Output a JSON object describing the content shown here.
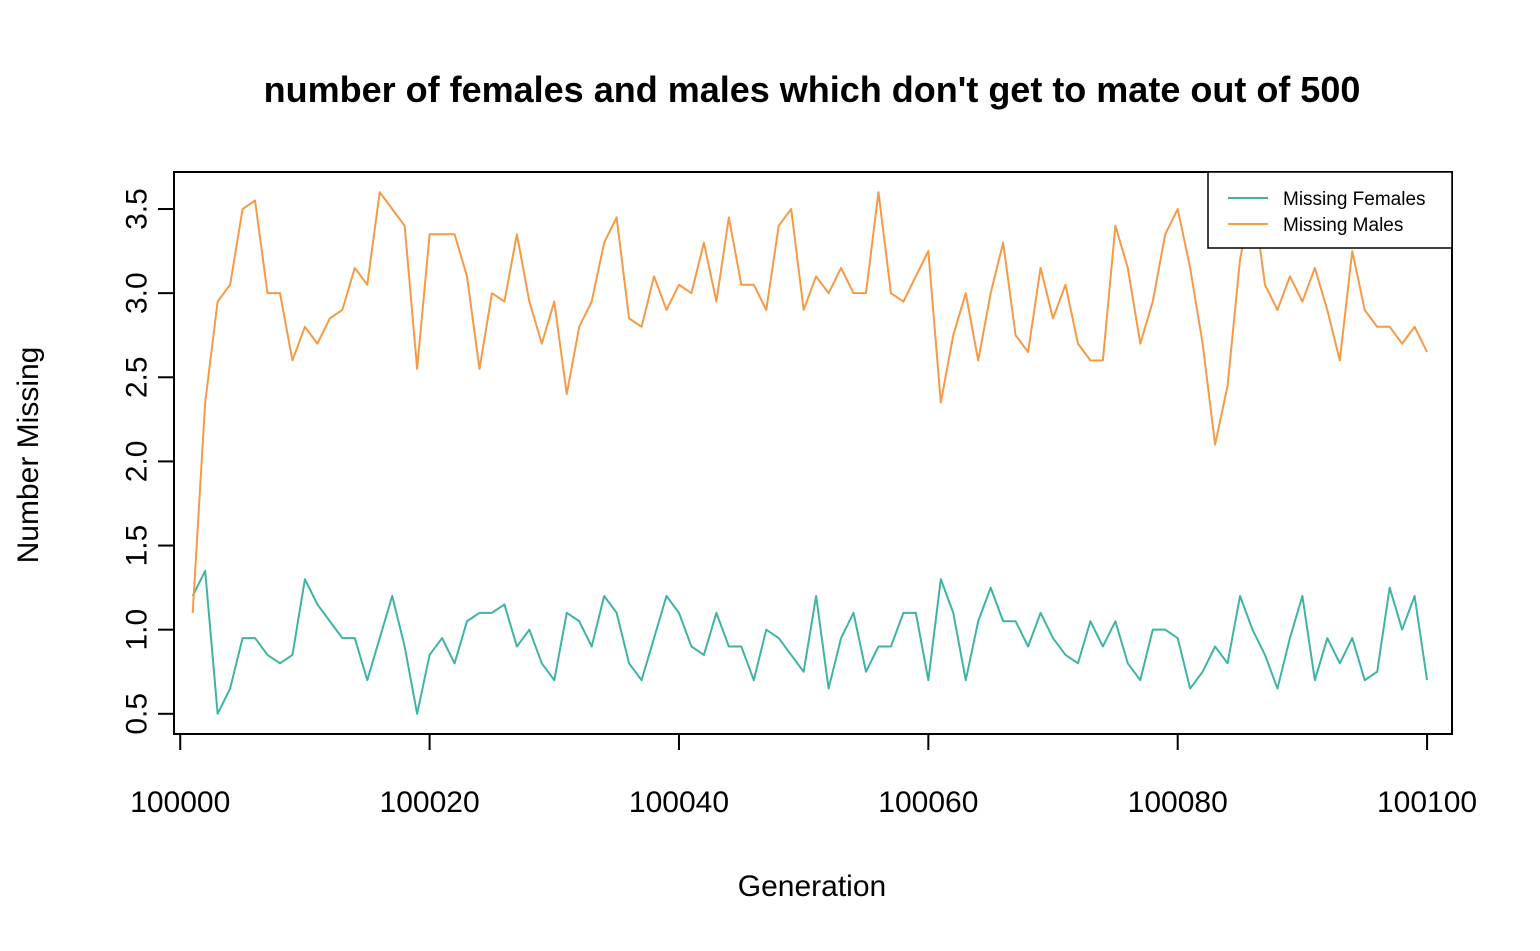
{
  "chart_data": {
    "type": "line",
    "title": "number of females and males which don't get to mate out of 500",
    "xlabel": "Generation",
    "ylabel": "Number Missing",
    "xlim": [
      99999.5,
      100102
    ],
    "ylim": [
      0.38,
      3.72
    ],
    "x_ticks": [
      "100000",
      "100020",
      "100040",
      "100060",
      "100080",
      "100100"
    ],
    "y_ticks": [
      "0.5",
      "1.0",
      "1.5",
      "2.0",
      "2.5",
      "3.0",
      "3.5"
    ],
    "grid": false,
    "legend_position": "top-right",
    "x_start": 100001,
    "x_end": 100100,
    "series": [
      {
        "name": "Missing Females",
        "color": "#3fb4a5",
        "values": [
          1.2,
          1.35,
          0.5,
          0.65,
          0.95,
          0.95,
          0.85,
          0.8,
          0.85,
          1.3,
          1.15,
          1.05,
          0.95,
          0.95,
          0.7,
          0.95,
          1.2,
          0.9,
          0.5,
          0.85,
          0.95,
          0.8,
          1.05,
          1.1,
          1.1,
          1.15,
          0.9,
          1.0,
          0.8,
          0.7,
          1.1,
          1.05,
          0.9,
          1.2,
          1.1,
          0.8,
          0.7,
          0.95,
          1.2,
          1.1,
          0.9,
          0.85,
          1.1,
          0.9,
          0.9,
          0.7,
          1.0,
          0.95,
          0.85,
          0.75,
          1.2,
          0.65,
          0.95,
          1.1,
          0.75,
          0.9,
          0.9,
          1.1,
          1.1,
          0.7,
          1.3,
          1.1,
          0.7,
          1.05,
          1.25,
          1.05,
          1.05,
          0.9,
          1.1,
          0.95,
          0.85,
          0.8,
          1.05,
          0.9,
          1.05,
          0.8,
          0.7,
          1.0,
          1.0,
          0.95,
          0.65,
          0.75,
          0.9,
          0.8,
          1.2,
          1.0,
          0.85,
          0.65,
          0.95,
          1.2,
          0.7,
          0.95,
          0.8,
          0.95,
          0.7,
          0.75,
          1.25,
          1.0,
          1.2,
          0.7
        ]
      },
      {
        "name": "Missing Males",
        "color": "#f59a46",
        "values": [
          1.1,
          2.35,
          2.95,
          3.05,
          3.5,
          3.55,
          3.0,
          3.0,
          2.6,
          2.8,
          2.7,
          2.85,
          2.9,
          3.15,
          3.05,
          3.6,
          3.5,
          3.4,
          2.55,
          3.35,
          3.35,
          3.35,
          3.1,
          2.55,
          3.0,
          2.95,
          3.35,
          2.95,
          2.7,
          2.95,
          2.4,
          2.8,
          2.95,
          3.3,
          3.45,
          2.85,
          2.8,
          3.1,
          2.9,
          3.05,
          3.0,
          3.3,
          2.95,
          3.45,
          3.05,
          3.05,
          2.9,
          3.4,
          3.5,
          2.9,
          3.1,
          3.0,
          3.15,
          3.0,
          3.0,
          3.6,
          3.0,
          2.95,
          3.1,
          3.25,
          2.35,
          2.75,
          3.0,
          2.6,
          3.0,
          3.3,
          2.75,
          2.65,
          3.15,
          2.85,
          3.05,
          2.7,
          2.6,
          2.6,
          3.4,
          3.15,
          2.7,
          2.95,
          3.35,
          3.5,
          3.15,
          2.7,
          2.1,
          2.45,
          3.2,
          3.6,
          3.05,
          2.9,
          3.1,
          2.95,
          3.15,
          2.9,
          2.6,
          3.25,
          2.9,
          2.8,
          2.8,
          2.7,
          2.8,
          2.65
        ]
      }
    ]
  }
}
